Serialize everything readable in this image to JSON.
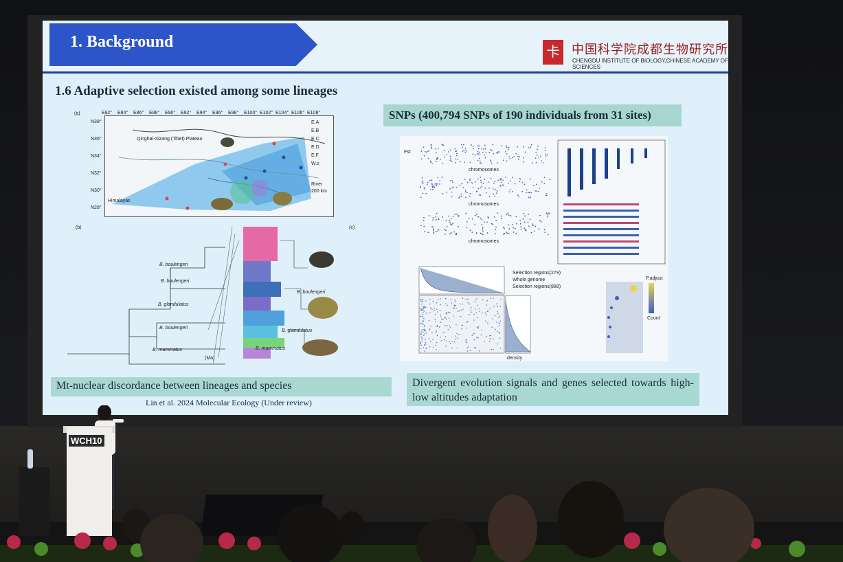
{
  "slide": {
    "title": "1. Background",
    "institute_cn": "中国科学院成都生物研究所",
    "institute_en": "CHENGDU INSTITUTE OF BIOLOGY,CHINESE ACADEMY OF SCIENCES",
    "section_heading": "1.6 Adaptive selection existed among some lineages",
    "snp_heading": "SNPs (400,794 SNPs of 190 individuals from 31 sites)",
    "caption_left": "Mt-nuclear discordance between lineages and species",
    "citation": "Lin et al. 2024 Molecular Ecology  (Under review)",
    "caption_right": "Divergent evolution signals and genes selected towards high-low altitudes adaptation",
    "map": {
      "panel_label": "(a)",
      "region_label": "Qinghai-Xizang (Tibet) Plateau",
      "himalayas": "Himalayas",
      "top_ticks": [
        "E82°",
        "E84°",
        "E86°",
        "E88°",
        "E90°",
        "E92°",
        "E94°",
        "E96°",
        "E98°",
        "E100°",
        "E102°",
        "E104°",
        "E106°",
        "E108°"
      ],
      "left_ticks": [
        "N38°",
        "N36°",
        "N34°",
        "N32°",
        "N30°",
        "N28°"
      ],
      "legend": [
        "E.A",
        "E.B",
        "E.C",
        "E.D",
        "E.F",
        "W.s",
        "River"
      ],
      "scale": "200 km"
    },
    "tree": {
      "panel_b": "(b)",
      "panel_c": "(c)",
      "species": [
        "B. boulengeri",
        "B. boulengeri",
        "B. glandulatus",
        "B. boulengeri",
        "B. mammatus",
        "B. boulengeri",
        "B. glandulatus",
        "B. mammatus"
      ],
      "axis": "(Ma)"
    },
    "snp_figure": {
      "xlabel_1": "chromosomes",
      "xlabel_2": "chromosomes",
      "xlabel_3": "chromosomes",
      "ylabel_fst": "Fst",
      "density": "density",
      "legend_items": [
        "Selection regions(279)",
        "Whole genome",
        "Selection regions(888)"
      ],
      "p_adjust": "P.adjust",
      "count": "Count"
    },
    "colors": {
      "header_blue": "#2d55c9",
      "header_rule": "#1f3f9a",
      "caption_teal": "#a9d8d3",
      "slide_bg": "#dff0fb",
      "logo_red": "#c9282d"
    }
  },
  "stage": {
    "podium_logo": "WCH10"
  }
}
